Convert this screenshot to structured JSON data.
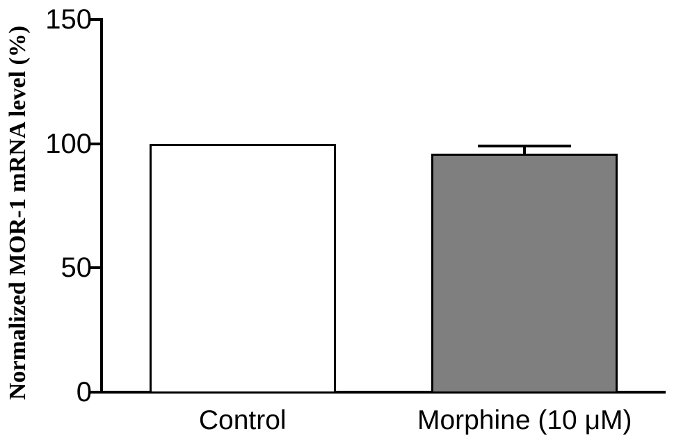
{
  "chart_data": {
    "type": "bar",
    "title": "",
    "ylabel": "Normalized MOR-1 mRNA level (%)",
    "xlabel": "",
    "ylim": [
      0,
      150
    ],
    "yticks": [
      0,
      50,
      100,
      150
    ],
    "grid": false,
    "legend": false,
    "categories": [
      "Control",
      "Morphine (10 μM)"
    ],
    "series": [
      {
        "name": "Normalized MOR-1 mRNA level (%)",
        "values": [
          100,
          96
        ],
        "errors_plus": [
          0,
          3
        ]
      }
    ],
    "styles": {
      "background": "#ffffff",
      "axis_color": "#000000",
      "text_color": "#000000",
      "error_color": "#000000",
      "bar_border_color": "#000000",
      "bar_fills": [
        "#ffffff",
        "#7f7f7f"
      ]
    }
  }
}
